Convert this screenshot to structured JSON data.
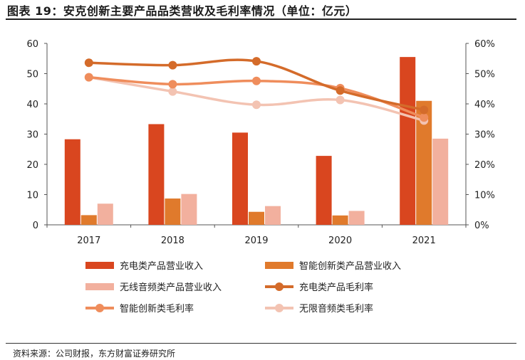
{
  "figure": {
    "title": "图表 19：安克创新主要产品品类营收及毛利率情况（单位：亿元）",
    "source": "资料来源：公司财报，东方财富证券研究所"
  },
  "chart_data": {
    "type": "bar",
    "categories": [
      "2017",
      "2018",
      "2019",
      "2020",
      "2021"
    ],
    "y_left": {
      "min": 0,
      "max": 60,
      "ticks": [
        "0",
        "10",
        "20",
        "30",
        "40",
        "50",
        "60"
      ]
    },
    "y_right": {
      "min": 0,
      "max": 60,
      "ticks": [
        "0%",
        "10%",
        "20%",
        "30%",
        "40%",
        "50%",
        "60%"
      ]
    },
    "bar_series": [
      {
        "name": "充电类产品营业收入",
        "color": "#d9461f",
        "values": [
          28.3,
          33.3,
          30.5,
          22.8,
          55.5
        ]
      },
      {
        "name": "智能创新类产品营业收入",
        "color": "#e07a2c",
        "values": [
          3.2,
          8.7,
          4.3,
          3.1,
          41.0
        ]
      },
      {
        "name": "无线音频类产品营业收入",
        "color": "#f2b09e",
        "values": [
          7.0,
          10.2,
          6.2,
          4.6,
          28.5
        ]
      }
    ],
    "line_series": [
      {
        "name": "充电类产品毛利率",
        "color": "#d46b2a",
        "values": [
          53.6,
          52.8,
          54.1,
          44.4,
          38.0
        ]
      },
      {
        "name": "智能创新类毛利率",
        "color": "#ef8d5c",
        "values": [
          48.8,
          46.5,
          47.6,
          45.2,
          35.5
        ]
      },
      {
        "name": "无限音频类毛利率",
        "color": "#f3c3b2",
        "values": [
          48.8,
          44.1,
          39.7,
          41.3,
          34.5
        ]
      }
    ],
    "grid": false,
    "legend_position": "bottom"
  }
}
